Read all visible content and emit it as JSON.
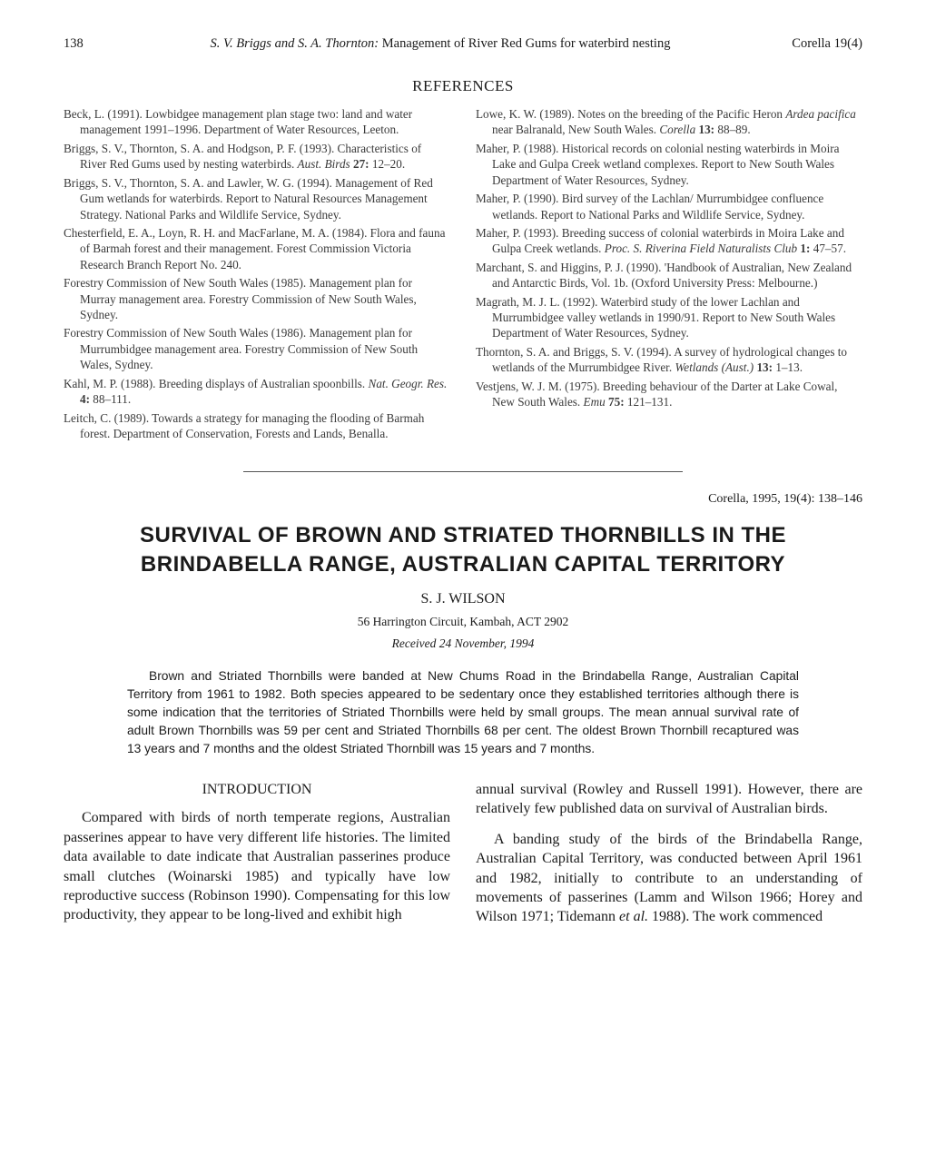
{
  "runningHead": {
    "pageNumber": "138",
    "authors": "S. V. Briggs and S. A. Thornton:",
    "titleFragment": " Management of River Red Gums for waterbird nesting",
    "issue": "Corella 19(4)"
  },
  "referencesHeading": "REFERENCES",
  "references": {
    "left": [
      {
        "html": "Beck, L. (1991). Lowbidgee management plan stage two: land and water management 1991–1996. Department of Water Resources, Leeton."
      },
      {
        "html": "Briggs, S. V., Thornton, S. A. and Hodgson, P. F. (1993). Characteristics of River Red Gums used by nesting waterbirds. <span class='i'>Aust. Birds</span> <span class='b'>27:</span> 12–20."
      },
      {
        "html": "Briggs, S. V., Thornton, S. A. and Lawler, W. G. (1994). Management of Red Gum wetlands for waterbirds. Report to Natural Resources Management Strategy. National Parks and Wildlife Service, Sydney."
      },
      {
        "html": "Chesterfield, E. A., Loyn, R. H. and MacFarlane, M. A. (1984). Flora and fauna of Barmah forest and their management. Forest Commission Victoria Research Branch Report No. 240."
      },
      {
        "html": "Forestry Commission of New South Wales (1985). Management plan for Murray management area. Forestry Commission of New South Wales, Sydney."
      },
      {
        "html": "Forestry Commission of New South Wales (1986). Management plan for Murrumbidgee management area. Forestry Commission of New South Wales, Sydney."
      },
      {
        "html": "Kahl, M. P. (1988). Breeding displays of Australian spoonbills. <span class='i'>Nat. Geogr. Res.</span> <span class='b'>4:</span> 88–111."
      },
      {
        "html": "Leitch, C. (1989). Towards a strategy for managing the flooding of Barmah forest. Department of Conservation, Forests and Lands, Benalla."
      }
    ],
    "right": [
      {
        "html": "Lowe, K. W. (1989). Notes on the breeding of the Pacific Heron <span class='i'>Ardea pacifica</span> near Balranald, New South Wales. <span class='i'>Corella</span> <span class='b'>13:</span> 88–89."
      },
      {
        "html": "Maher, P. (1988). Historical records on colonial nesting waterbirds in Moira Lake and Gulpa Creek wetland complexes. Report to New South Wales Department of Water Resources, Sydney."
      },
      {
        "html": "Maher, P. (1990). Bird survey of the Lachlan/ Murrumbidgee confluence wetlands. Report to National Parks and Wildlife Service, Sydney."
      },
      {
        "html": "Maher, P. (1993). Breeding success of colonial waterbirds in Moira Lake and Gulpa Creek wetlands. <span class='i'>Proc. S. Riverina Field Naturalists Club</span> <span class='b'>1:</span> 47–57."
      },
      {
        "html": "Marchant, S. and Higgins, P. J. (1990). 'Handbook of Australian, New Zealand and Antarctic Birds, Vol. 1b. (Oxford University Press: Melbourne.)"
      },
      {
        "html": "Magrath, M. J. L. (1992). Waterbird study of the lower Lachlan and Murrumbidgee valley wetlands in 1990/91. Report to New South Wales Department of Water Resources, Sydney."
      },
      {
        "html": "Thornton, S. A. and Briggs, S. V. (1994). A survey of hydrological changes to wetlands of the Murrumbidgee River. <span class='i'>Wetlands (Aust.)</span> <span class='b'>13:</span> 1–13."
      },
      {
        "html": "Vestjens, W. J. M. (1975). Breeding behaviour of the Darter at Lake Cowal, New South Wales. <span class='i'>Emu</span> <span class='b'>75:</span> 121–131."
      }
    ]
  },
  "seriesLine": "Corella, 1995, 19(4): 138–146",
  "paperTitle": "SURVIVAL OF BROWN AND STRIATED THORNBILLS IN THE BRINDABELLA RANGE, AUSTRALIAN CAPITAL TERRITORY",
  "author": "S. J. WILSON",
  "affiliation": "56 Harrington Circuit, Kambah, ACT 2902",
  "received": "Received 24 November, 1994",
  "abstract": "Brown and Striated Thornbills were banded at New Chums Road in the Brindabella Range, Australian Capital Territory from 1961 to 1982. Both species appeared to be sedentary once they established territories although there is some indication that the territories of Striated Thornbills were held by small groups. The mean annual survival rate of adult Brown Thornbills was 59 per cent and Striated Thornbills 68 per cent. The oldest Brown Thornbill recaptured was 13 years and 7 months and the oldest Striated Thornbill was 15 years and 7 months.",
  "introHeading": "INTRODUCTION",
  "body": {
    "leftCol": "Compared with birds of north temperate regions, Australian passerines appear to have very different life histories. The limited data available to date indicate that Australian passerines produce small clutches (Woinarski 1985) and typically have low reproductive success (Robinson 1990). Compensating for this low productivity, they appear to be long-lived and exhibit high",
    "rightColP1": "annual survival (Rowley and Russell 1991). However, there are relatively few published data on survival of Australian birds.",
    "rightColP2_a": "A banding study of the birds of the Brindabella Range, Australian Capital Territory, was conducted between April 1961 and 1982, initially to contribute to an understanding of movements of passerines (Lamm and Wilson 1966; Horey and Wilson 1971; Tidemann ",
    "rightColP2_b": "et al.",
    "rightColP2_c": " 1988). The work commenced"
  }
}
